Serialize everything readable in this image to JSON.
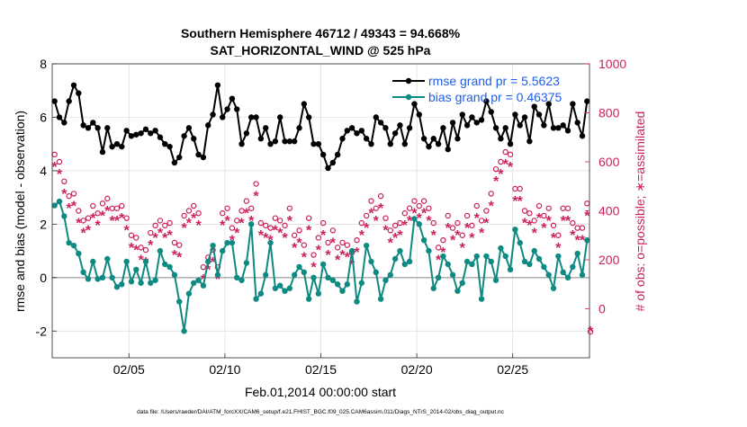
{
  "chart_data": {
    "type": "line",
    "title": "Southern Hemisphere 46712 / 49343 = 94.668%",
    "subtitle": "SAT_HORIZONTAL_WIND @ 525 hPa",
    "xlabel": "Feb.01,2014 00:00:00 start",
    "ylabel_left": "rmse and bias (model - observation)",
    "ylabel_right": "# of obs: o=possible; ∗=assimilated",
    "footer": "data file: /Users/raeder/DAI/ATM_forcXX/CAM6_setup/f.e21.FHIST_BGC.f09_025.CAM6assim.011/Diags_NTrS_2014-02/obs_diag_output.nc",
    "x_unit": "day of February 2014",
    "xlim": [
      1,
      29
    ],
    "ylim_left": [
      -3,
      8
    ],
    "ylim_right": [
      -200,
      1000
    ],
    "x_ticks": [
      {
        "x": 5,
        "label": "02/05"
      },
      {
        "x": 10,
        "label": "02/10"
      },
      {
        "x": 15,
        "label": "02/15"
      },
      {
        "x": 20,
        "label": "02/20"
      },
      {
        "x": 25,
        "label": "02/25"
      }
    ],
    "y_ticks_left": [
      "-2",
      "0",
      "2",
      "4",
      "6",
      "8"
    ],
    "y_ticks_right": [
      "0",
      "200",
      "400",
      "600",
      "800",
      "1000"
    ],
    "grid": true,
    "legend_position": "top-right",
    "x": [
      1.125,
      1.375,
      1.625,
      1.875,
      2.125,
      2.375,
      2.625,
      2.875,
      3.125,
      3.375,
      3.625,
      3.875,
      4.125,
      4.375,
      4.625,
      4.875,
      5.125,
      5.375,
      5.625,
      5.875,
      6.125,
      6.375,
      6.625,
      6.875,
      7.125,
      7.375,
      7.625,
      7.875,
      8.125,
      8.375,
      8.625,
      8.875,
      9.125,
      9.375,
      9.625,
      9.875,
      10.125,
      10.375,
      10.625,
      10.875,
      11.125,
      11.375,
      11.625,
      11.875,
      12.125,
      12.375,
      12.625,
      12.875,
      13.125,
      13.375,
      13.625,
      13.875,
      14.125,
      14.375,
      14.625,
      14.875,
      15.125,
      15.375,
      15.625,
      15.875,
      16.125,
      16.375,
      16.625,
      16.875,
      17.125,
      17.375,
      17.625,
      17.875,
      18.125,
      18.375,
      18.625,
      18.875,
      19.125,
      19.375,
      19.625,
      19.875,
      20.125,
      20.375,
      20.625,
      20.875,
      21.125,
      21.375,
      21.625,
      21.875,
      22.125,
      22.375,
      22.625,
      22.875,
      23.125,
      23.375,
      23.625,
      23.875,
      24.125,
      24.375,
      24.625,
      24.875,
      25.125,
      25.375,
      25.625,
      25.875,
      26.125,
      26.375,
      26.625,
      26.875,
      27.125,
      27.375,
      27.625,
      27.875,
      28.125,
      28.375,
      28.625,
      28.875
    ],
    "series": [
      {
        "name": "rmse grand pr = 5.5623",
        "axis": "left",
        "color": "#000000",
        "marker": "circle",
        "values": [
          6.6,
          6.0,
          5.8,
          6.6,
          7.2,
          6.9,
          5.7,
          5.6,
          5.8,
          5.6,
          4.7,
          5.6,
          4.9,
          5.0,
          4.9,
          5.5,
          5.3,
          5.35,
          5.4,
          5.55,
          5.4,
          5.5,
          5.25,
          5.0,
          4.9,
          4.3,
          4.5,
          5.3,
          5.6,
          5.2,
          4.6,
          4.5,
          5.7,
          6.1,
          7.2,
          6.0,
          6.3,
          6.7,
          6.3,
          5.0,
          5.4,
          6.0,
          6.0,
          5.2,
          5.6,
          5.0,
          5.1,
          6.0,
          5.1,
          5.1,
          5.1,
          5.6,
          6.5,
          6.0,
          5.0,
          5.0,
          4.6,
          4.1,
          4.3,
          4.6,
          5.2,
          5.5,
          5.6,
          5.4,
          5.5,
          5.2,
          5.0,
          6.0,
          5.8,
          5.6,
          5.0,
          5.4,
          5.7,
          5.0,
          5.6,
          6.5,
          6.1,
          5.2,
          4.9,
          5.2,
          5.0,
          5.6,
          4.8,
          5.8,
          5.2,
          6.1,
          5.7,
          6.0,
          5.8,
          5.9,
          6.6,
          6.2,
          5.6,
          5.2,
          5.6,
          5.0,
          6.1,
          5.7,
          6.0,
          5.1,
          6.4,
          6.1,
          5.7,
          6.5,
          5.6,
          5.6,
          5.7,
          5.5,
          6.5,
          5.8,
          5.3,
          6.6
        ]
      },
      {
        "name": "bias grand pr = 0.46375",
        "axis": "left",
        "color": "#0e8a82",
        "marker": "circle",
        "values": [
          2.7,
          2.85,
          2.3,
          1.3,
          1.2,
          0.9,
          0.2,
          -0.05,
          0.6,
          -0.05,
          0.0,
          0.7,
          0.0,
          -0.35,
          -0.25,
          0.6,
          -0.15,
          0.3,
          -0.2,
          0.6,
          -0.2,
          -0.1,
          1.0,
          0.5,
          0.4,
          0.1,
          -0.9,
          -2.0,
          -0.6,
          -0.2,
          -0.1,
          -0.3,
          0.6,
          1.2,
          0.1,
          1.0,
          1.3,
          1.3,
          0.0,
          -0.1,
          0.55,
          2.0,
          -0.8,
          -0.6,
          0.1,
          1.3,
          -0.4,
          -0.3,
          -0.5,
          -0.4,
          0.1,
          0.4,
          0.2,
          -0.8,
          0.0,
          -0.6,
          0.5,
          0.0,
          -0.1,
          -0.25,
          -0.5,
          -0.25,
          1.0,
          -0.9,
          -0.2,
          1.2,
          0.6,
          0.2,
          -0.8,
          -0.1,
          0.1,
          0.7,
          1.0,
          0.5,
          0.6,
          2.2,
          2.0,
          1.4,
          1.0,
          -0.4,
          0.0,
          0.8,
          0.5,
          0.1,
          -0.5,
          -0.2,
          0.6,
          0.5,
          0.8,
          -0.8,
          0.8,
          0.6,
          -0.1,
          1.1,
          0.8,
          0.3,
          1.8,
          1.3,
          0.6,
          0.5,
          1.0,
          0.7,
          0.4,
          0.1,
          -0.4,
          0.8,
          0.2,
          0.0,
          0.4,
          0.9,
          0.1,
          1.4
        ]
      }
    ],
    "obs_counts": {
      "axis": "right",
      "color": "#cc1f5c",
      "possible": [
        630,
        600,
        520,
        460,
        470,
        400,
        360,
        370,
        420,
        390,
        430,
        450,
        410,
        410,
        420,
        370,
        300,
        290,
        250,
        240,
        310,
        340,
        360,
        340,
        350,
        270,
        260,
        380,
        400,
        420,
        390,
        170,
        210,
        240,
        170,
        390,
        410,
        330,
        360,
        400,
        440,
        410,
        510,
        350,
        340,
        330,
        370,
        360,
        340,
        410,
        300,
        320,
        260,
        370,
        220,
        290,
        350,
        270,
        320,
        250,
        270,
        260,
        230,
        280,
        350,
        380,
        440,
        410,
        460,
        370,
        320,
        340,
        350,
        390,
        410,
        440,
        420,
        440,
        410,
        350,
        250,
        280,
        380,
        330,
        350,
        300,
        380,
        340,
        420,
        360,
        400,
        470,
        570,
        600,
        640,
        630,
        490,
        490,
        400,
        390,
        360,
        420,
        380,
        410,
        340,
        300,
        410,
        410,
        350,
        330,
        330,
        430
      ]
    },
    "assimilated_off_scale_right": "0"
  },
  "legend": {
    "rmse_label": "rmse grand pr = 5.5623",
    "bias_label": "bias grand pr = 0.46375"
  }
}
